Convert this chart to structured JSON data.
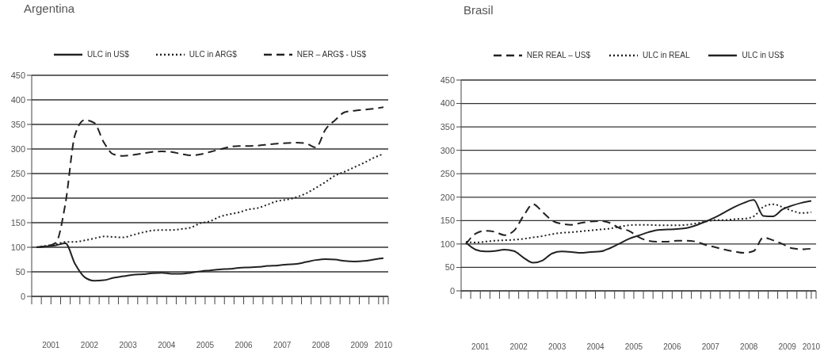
{
  "chart_data": [
    {
      "type": "line",
      "title": "Argentina",
      "legend": "top",
      "grid": "y",
      "x": [
        2001.125,
        2001.375,
        2001.625,
        2001.875,
        2002.125,
        2002.375,
        2002.625,
        2002.875,
        2003.125,
        2003.375,
        2003.625,
        2003.875,
        2004.125,
        2004.375,
        2004.625,
        2004.875,
        2005.125,
        2005.375,
        2005.625,
        2005.875,
        2006.125,
        2006.375,
        2006.625,
        2006.875,
        2007.125,
        2007.375,
        2007.625,
        2007.875,
        2008.125,
        2008.375,
        2008.625,
        2008.875,
        2009.125,
        2009.375,
        2009.625,
        2009.875,
        2010.125
      ],
      "xlim": [
        2001,
        2010.25
      ],
      "xticks": [
        {
          "value": 2001,
          "label": null
        },
        {
          "value": 2001.25,
          "label": null
        },
        {
          "value": 2001.5,
          "label": "2001"
        },
        {
          "value": 2001.75,
          "label": null
        },
        {
          "value": 2002,
          "label": null
        },
        {
          "value": 2002.25,
          "label": null
        },
        {
          "value": 2002.5,
          "label": "2002"
        },
        {
          "value": 2002.75,
          "label": null
        },
        {
          "value": 2003,
          "label": null
        },
        {
          "value": 2003.25,
          "label": null
        },
        {
          "value": 2003.5,
          "label": "2003"
        },
        {
          "value": 2003.75,
          "label": null
        },
        {
          "value": 2004,
          "label": null
        },
        {
          "value": 2004.25,
          "label": null
        },
        {
          "value": 2004.5,
          "label": "2004"
        },
        {
          "value": 2004.75,
          "label": null
        },
        {
          "value": 2005,
          "label": null
        },
        {
          "value": 2005.25,
          "label": null
        },
        {
          "value": 2005.5,
          "label": "2005"
        },
        {
          "value": 2005.75,
          "label": null
        },
        {
          "value": 2006,
          "label": null
        },
        {
          "value": 2006.25,
          "label": null
        },
        {
          "value": 2006.5,
          "label": "2006"
        },
        {
          "value": 2006.75,
          "label": null
        },
        {
          "value": 2007,
          "label": null
        },
        {
          "value": 2007.25,
          "label": null
        },
        {
          "value": 2007.5,
          "label": "2007"
        },
        {
          "value": 2007.75,
          "label": null
        },
        {
          "value": 2008,
          "label": null
        },
        {
          "value": 2008.25,
          "label": null
        },
        {
          "value": 2008.5,
          "label": "2008"
        },
        {
          "value": 2008.75,
          "label": null
        },
        {
          "value": 2009,
          "label": null
        },
        {
          "value": 2009.25,
          "label": null
        },
        {
          "value": 2009.5,
          "label": "2009"
        },
        {
          "value": 2009.75,
          "label": null
        },
        {
          "value": 2010,
          "label": null
        },
        {
          "value": 2010.125,
          "label": "2010"
        },
        {
          "value": 2010.25,
          "label": null
        }
      ],
      "ylim": [
        0,
        450
      ],
      "yticks": [
        0,
        50,
        100,
        150,
        200,
        250,
        300,
        350,
        400,
        450
      ],
      "series": [
        {
          "name": "ULC in US$",
          "color": "#222222",
          "line_style": "solid",
          "values": [
            100,
            102,
            104,
            108,
            66,
            39,
            32,
            33,
            38,
            41,
            44,
            45,
            47,
            48,
            46,
            46,
            48,
            51,
            53,
            55,
            56,
            58,
            59,
            60,
            62,
            63,
            65,
            66,
            70,
            74,
            76,
            75,
            72,
            71,
            72,
            75,
            78
          ]
        },
        {
          "name": "ULC in ARG$",
          "color": "#222222",
          "line_style": "dotted",
          "values": [
            100,
            103,
            106,
            111,
            111,
            114,
            118,
            122,
            121,
            120,
            125,
            130,
            134,
            135,
            135,
            137,
            140,
            149,
            153,
            162,
            167,
            171,
            177,
            180,
            187,
            194,
            197,
            202,
            210,
            221,
            233,
            246,
            254,
            263,
            272,
            282,
            290
          ]
        },
        {
          "name": "NER – ARG$ - US$",
          "color": "#222222",
          "line_style": "dashed",
          "values": [
            100,
            102,
            109,
            189,
            329,
            359,
            353,
            313,
            289,
            286,
            288,
            291,
            294,
            295,
            294,
            290,
            287,
            289,
            294,
            299,
            304,
            306,
            306,
            307,
            309,
            311,
            312,
            313,
            311,
            303,
            340,
            359,
            375,
            378,
            380,
            382,
            385
          ]
        }
      ]
    },
    {
      "type": "line",
      "title": "Brasil",
      "legend": "top",
      "grid": "y",
      "x": [
        2001.125,
        2001.375,
        2001.625,
        2001.875,
        2002.125,
        2002.375,
        2002.625,
        2002.875,
        2003.125,
        2003.375,
        2003.625,
        2003.875,
        2004.125,
        2004.375,
        2004.625,
        2004.875,
        2005.125,
        2005.375,
        2005.625,
        2005.875,
        2006.125,
        2006.375,
        2006.625,
        2006.875,
        2007.125,
        2007.375,
        2007.625,
        2007.875,
        2008.125,
        2008.375,
        2008.625,
        2008.875,
        2009.125,
        2009.375,
        2009.625,
        2009.875,
        2010.125
      ],
      "xlim": [
        2001,
        2010.25
      ],
      "xticks": [
        {
          "value": 2001,
          "label": null
        },
        {
          "value": 2001.25,
          "label": null
        },
        {
          "value": 2001.5,
          "label": "2001"
        },
        {
          "value": 2001.75,
          "label": null
        },
        {
          "value": 2002,
          "label": null
        },
        {
          "value": 2002.25,
          "label": null
        },
        {
          "value": 2002.5,
          "label": "2002"
        },
        {
          "value": 2002.75,
          "label": null
        },
        {
          "value": 2003,
          "label": null
        },
        {
          "value": 2003.25,
          "label": null
        },
        {
          "value": 2003.5,
          "label": "2003"
        },
        {
          "value": 2003.75,
          "label": null
        },
        {
          "value": 2004,
          "label": null
        },
        {
          "value": 2004.25,
          "label": null
        },
        {
          "value": 2004.5,
          "label": "2004"
        },
        {
          "value": 2004.75,
          "label": null
        },
        {
          "value": 2005,
          "label": null
        },
        {
          "value": 2005.25,
          "label": null
        },
        {
          "value": 2005.5,
          "label": "2005"
        },
        {
          "value": 2005.75,
          "label": null
        },
        {
          "value": 2006,
          "label": null
        },
        {
          "value": 2006.25,
          "label": null
        },
        {
          "value": 2006.5,
          "label": "2006"
        },
        {
          "value": 2006.75,
          "label": null
        },
        {
          "value": 2007,
          "label": null
        },
        {
          "value": 2007.25,
          "label": null
        },
        {
          "value": 2007.5,
          "label": "2007"
        },
        {
          "value": 2007.75,
          "label": null
        },
        {
          "value": 2008,
          "label": null
        },
        {
          "value": 2008.25,
          "label": null
        },
        {
          "value": 2008.5,
          "label": "2008"
        },
        {
          "value": 2008.75,
          "label": null
        },
        {
          "value": 2009,
          "label": null
        },
        {
          "value": 2009.25,
          "label": null
        },
        {
          "value": 2009.5,
          "label": "2009"
        },
        {
          "value": 2009.75,
          "label": null
        },
        {
          "value": 2010,
          "label": null
        },
        {
          "value": 2010.125,
          "label": "2010"
        },
        {
          "value": 2010.25,
          "label": null
        }
      ],
      "ylim": [
        0,
        450
      ],
      "yticks": [
        0,
        50,
        100,
        150,
        200,
        250,
        300,
        350,
        400,
        450
      ],
      "series": [
        {
          "name": "NER REAL – US$",
          "color": "#222222",
          "line_style": "dashed",
          "values": [
            100,
            122,
            128,
            126,
            119,
            128,
            160,
            185,
            168,
            150,
            143,
            141,
            145,
            148,
            149,
            145,
            134,
            128,
            115,
            107,
            105,
            105,
            107,
            107,
            105,
            98,
            93,
            88,
            84,
            81,
            85,
            114,
            108,
            100,
            91,
            89,
            90
          ]
        },
        {
          "name": "ULC in REAL",
          "color": "#222222",
          "line_style": "dotted",
          "values": [
            105,
            103,
            105,
            107,
            108,
            109,
            111,
            114,
            117,
            121,
            124,
            125,
            127,
            129,
            131,
            133,
            137,
            140,
            141,
            141,
            140,
            140,
            140,
            141,
            144,
            148,
            151,
            151,
            153,
            154,
            159,
            179,
            185,
            179,
            171,
            166,
            168
          ]
        },
        {
          "name": "ULC in US$",
          "color": "#222222",
          "line_style": "solid",
          "values": [
            103,
            88,
            84,
            85,
            88,
            85,
            71,
            60,
            65,
            80,
            84,
            83,
            81,
            83,
            84,
            91,
            101,
            111,
            118,
            125,
            130,
            131,
            132,
            134,
            140,
            148,
            157,
            168,
            179,
            188,
            194,
            160,
            159,
            174,
            182,
            188,
            192
          ]
        }
      ]
    }
  ]
}
